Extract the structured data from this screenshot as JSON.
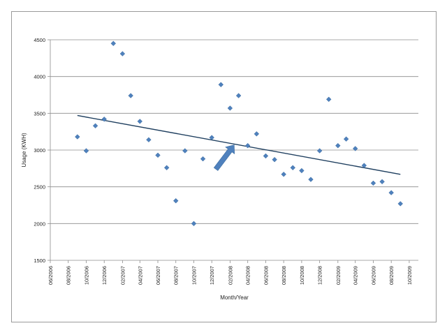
{
  "chart_data": {
    "type": "scatter",
    "title": "",
    "xlabel": "Month/Year",
    "ylabel": "Usage (KWH)",
    "ylim": [
      1500,
      4500
    ],
    "y_ticks": [
      1500,
      2000,
      2500,
      3000,
      3500,
      4000,
      4500
    ],
    "x_range": [
      "2006-06-01",
      "2009-11-01"
    ],
    "x_ticks": [
      "06/2006",
      "08/2006",
      "10/2006",
      "12/2006",
      "02/2007",
      "04/2007",
      "06/2007",
      "08/2007",
      "10/2007",
      "12/2007",
      "02/2008",
      "04/2008",
      "06/2008",
      "08/2008",
      "10/2008",
      "12/2008",
      "02/2009",
      "04/2009",
      "06/2009",
      "08/2009",
      "10/2009"
    ],
    "x_tick_labels": [
      "06/2006",
      "08/2006",
      "10/2006",
      "12/2006",
      "02/2007",
      "04/2007",
      "06/2007",
      "08/2007",
      "10/2007",
      "12/2007",
      "02/2008",
      "04/2008",
      "06/2008",
      "08/2008",
      "10/2008",
      "12/2008",
      "02/2009",
      "04/2009",
      "06/2009",
      "08/2009",
      "10/2009"
    ],
    "grid": "horizontal",
    "legend": "none",
    "marker_color": "#4f81bd",
    "trendline_color": "#1f3f5f",
    "arrow_color": "#4f81bd",
    "points": [
      {
        "x": "2006-09-01",
        "y": 3180
      },
      {
        "x": "2006-10-01",
        "y": 2990
      },
      {
        "x": "2006-11-01",
        "y": 3330
      },
      {
        "x": "2006-12-01",
        "y": 3420
      },
      {
        "x": "2007-01-01",
        "y": 4450
      },
      {
        "x": "2007-02-01",
        "y": 4310
      },
      {
        "x": "2007-03-01",
        "y": 3740
      },
      {
        "x": "2007-04-01",
        "y": 3390
      },
      {
        "x": "2007-05-01",
        "y": 3140
      },
      {
        "x": "2007-06-01",
        "y": 2930
      },
      {
        "x": "2007-07-01",
        "y": 2760
      },
      {
        "x": "2007-08-01",
        "y": 2310
      },
      {
        "x": "2007-09-01",
        "y": 2990
      },
      {
        "x": "2007-10-01",
        "y": 2000
      },
      {
        "x": "2007-11-01",
        "y": 2880
      },
      {
        "x": "2007-12-01",
        "y": 3170
      },
      {
        "x": "2008-01-01",
        "y": 3890
      },
      {
        "x": "2008-02-01",
        "y": 3570
      },
      {
        "x": "2008-03-01",
        "y": 3740
      },
      {
        "x": "2008-04-01",
        "y": 3060
      },
      {
        "x": "2008-05-01",
        "y": 3220
      },
      {
        "x": "2008-06-01",
        "y": 2920
      },
      {
        "x": "2008-07-01",
        "y": 2870
      },
      {
        "x": "2008-08-01",
        "y": 2670
      },
      {
        "x": "2008-09-01",
        "y": 2760
      },
      {
        "x": "2008-10-01",
        "y": 2720
      },
      {
        "x": "2008-11-01",
        "y": 2600
      },
      {
        "x": "2008-12-01",
        "y": 2990
      },
      {
        "x": "2009-01-01",
        "y": 3690
      },
      {
        "x": "2009-02-01",
        "y": 3060
      },
      {
        "x": "2009-03-01",
        "y": 3150
      },
      {
        "x": "2009-04-01",
        "y": 3020
      },
      {
        "x": "2009-05-01",
        "y": 2790
      },
      {
        "x": "2009-06-01",
        "y": 2550
      },
      {
        "x": "2009-07-01",
        "y": 2570
      },
      {
        "x": "2009-08-01",
        "y": 2420
      },
      {
        "x": "2009-09-01",
        "y": 2270
      }
    ],
    "trendline": [
      {
        "x": "2006-09-01",
        "y": 3470
      },
      {
        "x": "2009-09-01",
        "y": 2670
      }
    ],
    "arrow": {
      "from": {
        "x": "2007-12-15",
        "y": 2740
      },
      "to": {
        "x": "2008-02-15",
        "y": 3070
      }
    }
  }
}
